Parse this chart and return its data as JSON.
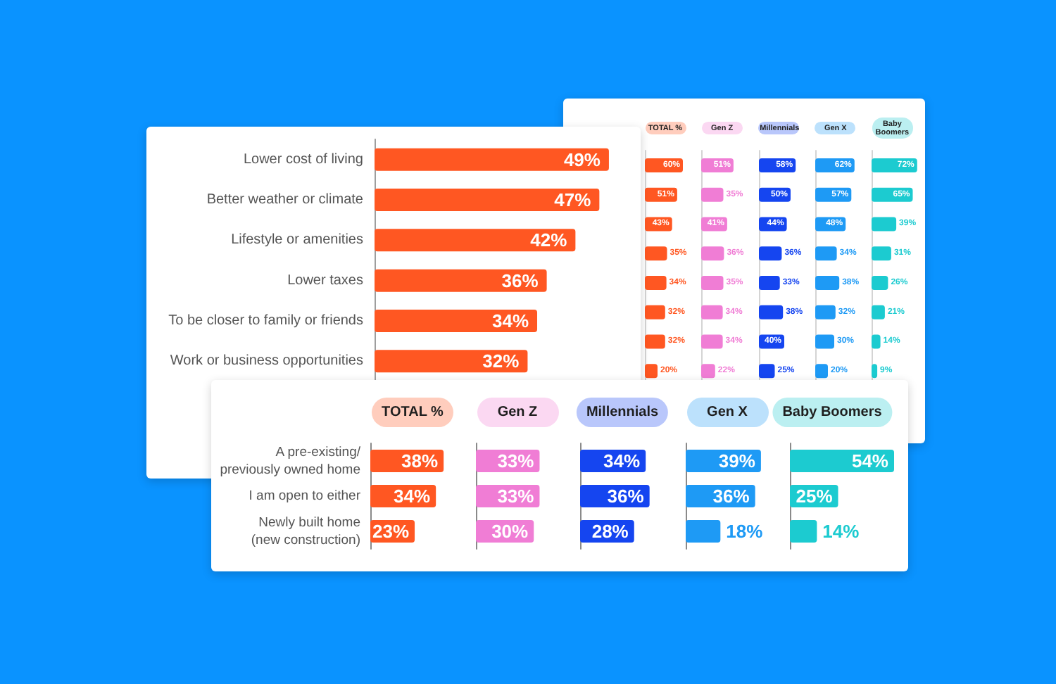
{
  "chart_data": [
    {
      "type": "bar",
      "orientation": "horizontal",
      "categories": [
        "Lower cost of living",
        "Better weather or climate",
        "Lifestyle or amenities",
        "Lower taxes",
        "To be closer to family or friends",
        "Work or business opportunities"
      ],
      "values": [
        49,
        47,
        42,
        36,
        34,
        32
      ],
      "value_labels": [
        "49%",
        "47%",
        "42%",
        "36%",
        "34%",
        "32%"
      ],
      "color": "#ff5722",
      "tick_labels": "y"
    },
    {
      "type": "bar",
      "orientation": "horizontal",
      "title": "TOTAL %",
      "categories": [
        null,
        null,
        null,
        null,
        null,
        null,
        null,
        null
      ],
      "values": [
        60,
        51,
        43,
        35,
        34,
        32,
        32,
        20
      ],
      "value_labels": [
        "60%",
        "51%",
        "43%",
        "35%",
        "34%",
        "32%",
        "32%",
        "20%"
      ],
      "color": "#ff5722",
      "tick_labels": false
    },
    {
      "type": "bar",
      "orientation": "horizontal",
      "title": "Gen Z",
      "categories": [
        null,
        null,
        null,
        null,
        null,
        null,
        null,
        null
      ],
      "values": [
        51,
        35,
        41,
        36,
        35,
        34,
        34,
        22
      ],
      "value_labels": [
        "51%",
        "35%",
        "41%",
        "36%",
        "35%",
        "34%",
        "34%",
        "22%"
      ],
      "color": "#f07dd5",
      "tick_labels": false
    },
    {
      "type": "bar",
      "orientation": "horizontal",
      "title": "Millennials",
      "categories": [
        null,
        null,
        null,
        null,
        null,
        null,
        null,
        null
      ],
      "values": [
        58,
        50,
        44,
        36,
        33,
        38,
        40,
        25
      ],
      "value_labels": [
        "58%",
        "50%",
        "44%",
        "36%",
        "33%",
        "38%",
        "40%",
        "25%"
      ],
      "color": "#1545f0",
      "tick_labels": false
    },
    {
      "type": "bar",
      "orientation": "horizontal",
      "title": "Gen X",
      "categories": [
        null,
        null,
        null,
        null,
        null,
        null,
        null,
        null
      ],
      "values": [
        62,
        57,
        48,
        34,
        38,
        32,
        30,
        20
      ],
      "value_labels": [
        "62%",
        "57%",
        "48%",
        "34%",
        "38%",
        "32%",
        "30%",
        "20%"
      ],
      "color": "#1e9af5",
      "tick_labels": false
    },
    {
      "type": "bar",
      "orientation": "horizontal",
      "title": "Baby Boomers",
      "categories": [
        null,
        null,
        null,
        null,
        null,
        null,
        null,
        null
      ],
      "values": [
        72,
        65,
        39,
        31,
        26,
        21,
        14,
        9
      ],
      "value_labels": [
        "72%",
        "65%",
        "39%",
        "31%",
        "26%",
        "21%",
        "14%",
        "9%"
      ],
      "color": "#1ccbd0",
      "tick_labels": false
    },
    {
      "type": "bar",
      "orientation": "horizontal",
      "title": "TOTAL %",
      "categories": [
        "A pre-existing/\npreviously owned home",
        "I am open to either",
        "Newly built home\n(new construction)"
      ],
      "values": [
        38,
        34,
        23
      ],
      "value_labels": [
        "38%",
        "34%",
        "23%"
      ],
      "color": "#ff5722",
      "tick_labels": "y"
    },
    {
      "type": "bar",
      "orientation": "horizontal",
      "title": "Gen Z",
      "categories": [
        null,
        null,
        null
      ],
      "values": [
        33,
        33,
        30
      ],
      "value_labels": [
        "33%",
        "33%",
        "30%"
      ],
      "color": "#f07dd5",
      "tick_labels": false
    },
    {
      "type": "bar",
      "orientation": "horizontal",
      "title": "Millennials",
      "categories": [
        null,
        null,
        null
      ],
      "values": [
        34,
        36,
        28
      ],
      "value_labels": [
        "34%",
        "36%",
        "28%"
      ],
      "color": "#1545f0",
      "tick_labels": false
    },
    {
      "type": "bar",
      "orientation": "horizontal",
      "title": "Gen X",
      "categories": [
        null,
        null,
        null
      ],
      "values": [
        39,
        36,
        18
      ],
      "value_labels": [
        "39%",
        "36%",
        "18%"
      ],
      "color": "#1e9af5",
      "tick_labels": false
    },
    {
      "type": "bar",
      "orientation": "horizontal",
      "title": "Baby Boomers",
      "categories": [
        null,
        null,
        null
      ],
      "values": [
        54,
        25,
        14
      ],
      "value_labels": [
        "54%",
        "25%",
        "14%"
      ],
      "color": "#1ccbd0",
      "tick_labels": false
    }
  ]
}
